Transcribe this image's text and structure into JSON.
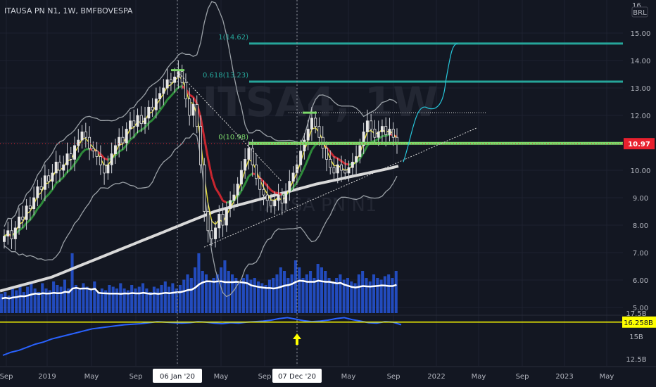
{
  "header": {
    "symbol": "ITAUSA PN N1, 1W, BMFBOVESPA",
    "currency": "BRL"
  },
  "watermark": {
    "ticker": "ITSA4, 1W",
    "name": "ITAUSA PN N1"
  },
  "colors": {
    "background": "#131722",
    "grid": "#1e2230",
    "axis_text": "#b2b5be",
    "candle_up": "#e6e6e6",
    "candle_down": "#e6e6e6",
    "ema_fast": "#e8e03b",
    "ema_mid_up": "#2e8b3a",
    "ema_mid_down": "#c8262f",
    "sma_long": "#d9d9d9",
    "bollinger": "#9aa0a6",
    "fib": "#26a69a",
    "support": "#7cd96a",
    "volume": "#2962ff",
    "volume_ma": "#ffffff",
    "projection": "#26c6da",
    "indicator_line": "#2962ff",
    "indicator_level": "#ffff00",
    "price_marker": "#e8212e"
  },
  "chart_data": [
    {
      "type": "candlestick",
      "symbol": "ITAUSA PN N1",
      "interval": "1W",
      "exchange": "BMFBOVESPA",
      "currency": "BRL",
      "y_axis_labels": [
        "15.00",
        "14.00",
        "13.00",
        "12.00",
        "11.00",
        "10.00",
        "9.00",
        "8.00",
        "7.00",
        "6.00",
        "5.00"
      ],
      "y_axis_partial_top": "16.",
      "x_axis_labels": [
        "Sep",
        "2019",
        "May",
        "Sep",
        "06 Jan '20",
        "May",
        "Sep",
        "07 Dec '20",
        "May",
        "Sep",
        "2022",
        "May",
        "Sep",
        "2023",
        "May"
      ],
      "highlighted_dates": [
        "06 Jan '20",
        "07 Dec '20"
      ],
      "last_price": "10.97",
      "ylim": [
        4.7,
        16.2
      ],
      "annotations": {
        "fib_levels": [
          {
            "label": "1(14.62)",
            "value": 14.62
          },
          {
            "label": "0.618(13.23)",
            "value": 13.23
          },
          {
            "label": "0(10.98)",
            "value": 10.98
          }
        ],
        "resistance": 12.1,
        "projection": "upward path toward 14.62"
      },
      "close_series": [
        7.6,
        7.8,
        7.5,
        7.9,
        8.3,
        8.2,
        8.7,
        8.6,
        9.0,
        9.4,
        9.3,
        9.8,
        9.6,
        9.9,
        10.3,
        10.0,
        10.2,
        10.6,
        10.4,
        10.9,
        11.1,
        11.4,
        11.2,
        10.8,
        10.7,
        10.5,
        10.2,
        9.9,
        10.2,
        10.6,
        10.9,
        11.2,
        11.0,
        11.5,
        11.8,
        11.6,
        12.0,
        11.7,
        11.9,
        12.3,
        12.2,
        12.6,
        12.8,
        13.0,
        13.3,
        13.2,
        13.4,
        13.6,
        13.2,
        12.6,
        12.0,
        12.4,
        11.6,
        10.2,
        8.5,
        7.8,
        7.5,
        7.9,
        8.4,
        8.0,
        8.6,
        8.9,
        9.1,
        9.5,
        10.0,
        10.4,
        10.8,
        10.2,
        9.7,
        9.3,
        9.1,
        8.9,
        8.7,
        8.9,
        9.1,
        8.8,
        9.2,
        9.6,
        9.9,
        10.2,
        10.7,
        11.1,
        11.5,
        11.9,
        11.6,
        11.2,
        10.8,
        10.4,
        10.1,
        9.9,
        10.2,
        10.0,
        9.9,
        10.1,
        10.3,
        10.5,
        10.9,
        11.4,
        11.8,
        11.5,
        11.2,
        11.4,
        11.6,
        11.3,
        11.5,
        11.2,
        10.97
      ],
      "sma_long_series": [
        5.6,
        5.7,
        5.8,
        5.9,
        6.0,
        6.1,
        6.25,
        6.4,
        6.55,
        6.7,
        6.85,
        7.0,
        7.15,
        7.3,
        7.45,
        7.6,
        7.75,
        7.9,
        8.05,
        8.2,
        8.35,
        8.5,
        8.6,
        8.7,
        8.8,
        8.9,
        9.0,
        9.1,
        9.2,
        9.3,
        9.4,
        9.5,
        9.58,
        9.66,
        9.74,
        9.82,
        9.9,
        9.98,
        10.06,
        10.15
      ],
      "volume": {
        "ma_level_axis": "≈5.9 (price-axis units)",
        "bars": [
          0.55,
          0.6,
          0.5,
          0.7,
          0.65,
          0.8,
          0.6,
          0.75,
          0.9,
          0.7,
          0.6,
          0.85,
          0.7,
          0.65,
          0.9,
          0.8,
          0.75,
          0.95,
          0.7,
          1.7,
          0.8,
          0.7,
          0.85,
          0.75,
          0.7,
          0.9,
          0.6,
          0.7,
          0.65,
          0.8,
          0.75,
          0.7,
          0.85,
          0.7,
          0.65,
          0.8,
          0.7,
          0.75,
          0.85,
          0.7,
          0.6,
          0.75,
          0.7,
          0.8,
          0.9,
          0.75,
          0.85,
          0.7,
          0.8,
          0.95,
          1.1,
          1.0,
          1.3,
          1.7,
          1.2,
          1.1,
          0.9,
          1.0,
          1.1,
          1.3,
          1.5,
          1.2,
          1.1,
          1.0,
          0.9,
          1.0,
          1.1,
          0.95,
          1.0,
          0.9,
          0.85,
          0.8,
          0.95,
          1.0,
          1.1,
          1.3,
          1.2,
          1.0,
          1.1,
          1.5,
          1.3,
          1.0,
          1.1,
          1.2,
          1.0,
          1.4,
          1.3,
          1.2,
          1.0,
          0.9,
          1.0,
          1.1,
          0.95,
          1.0,
          0.9,
          0.85,
          1.1,
          1.2,
          1.0,
          0.9,
          1.1,
          1.0,
          0.95,
          1.05,
          1.1,
          1.0,
          1.2
        ]
      }
    },
    {
      "type": "line",
      "panel": "indicator",
      "y_axis_labels": [
        "17.5B",
        "15B",
        "12.5B"
      ],
      "level": "16.258B",
      "marker": "yellow up arrow at 07 Dec '20",
      "values": [
        13.0,
        13.3,
        13.5,
        13.8,
        14.1,
        14.3,
        14.6,
        14.8,
        15.0,
        15.2,
        15.4,
        15.6,
        15.7,
        15.8,
        15.9,
        16.0,
        16.05,
        16.1,
        16.2,
        16.3,
        16.25,
        16.2,
        16.15,
        16.2,
        16.3,
        16.25,
        16.15,
        16.1,
        16.2,
        16.15,
        16.25,
        16.3,
        16.35,
        16.45,
        16.6,
        16.7,
        16.55,
        16.4,
        16.3,
        16.35,
        16.45,
        16.6,
        16.7,
        16.5,
        16.35,
        16.2,
        16.15,
        16.3,
        16.25,
        16.0
      ]
    }
  ]
}
